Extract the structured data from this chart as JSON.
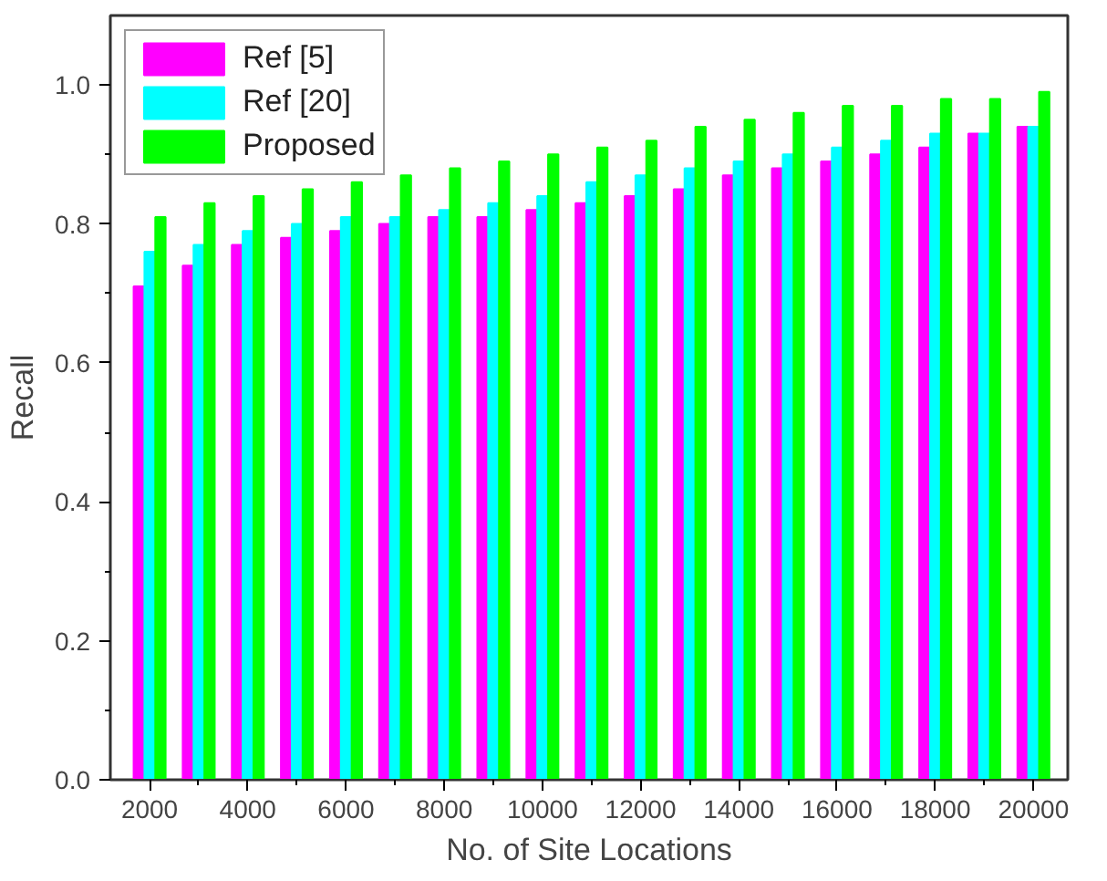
{
  "chart_data": {
    "type": "bar",
    "xlabel": "No. of Site Locations",
    "ylabel": "Recall",
    "x": [
      2000,
      3000,
      4000,
      5000,
      6000,
      7000,
      8000,
      9000,
      10000,
      11000,
      12000,
      13000,
      14000,
      15000,
      16000,
      17000,
      18000,
      19000,
      20000
    ],
    "series": [
      {
        "name": "Ref [5]",
        "color": "#ff00ff",
        "values": [
          0.71,
          0.74,
          0.77,
          0.78,
          0.79,
          0.8,
          0.81,
          0.81,
          0.82,
          0.83,
          0.84,
          0.85,
          0.87,
          0.88,
          0.89,
          0.9,
          0.91,
          0.93,
          0.94
        ]
      },
      {
        "name": "Ref [20]",
        "color": "#00ffff",
        "values": [
          0.76,
          0.77,
          0.79,
          0.8,
          0.81,
          0.81,
          0.82,
          0.83,
          0.84,
          0.86,
          0.87,
          0.88,
          0.89,
          0.9,
          0.91,
          0.92,
          0.93,
          0.93,
          0.94
        ]
      },
      {
        "name": "Proposed",
        "color": "#00ff00",
        "values": [
          0.81,
          0.83,
          0.84,
          0.85,
          0.86,
          0.87,
          0.88,
          0.89,
          0.9,
          0.91,
          0.92,
          0.94,
          0.95,
          0.96,
          0.97,
          0.97,
          0.98,
          0.98,
          0.99
        ]
      }
    ],
    "xlim": [
      1200,
      20700
    ],
    "xticks": [
      2000,
      4000,
      6000,
      8000,
      10000,
      12000,
      14000,
      16000,
      18000,
      20000
    ],
    "ylim": [
      0,
      1.1
    ],
    "yticks": [
      {
        "value": 0,
        "label": "0.0"
      },
      {
        "value": 0.2,
        "label": "0.2"
      },
      {
        "value": 0.4,
        "label": "0.4"
      },
      {
        "value": 0.6,
        "label": "0.6"
      },
      {
        "value": 0.8,
        "label": "0.8"
      },
      {
        "value": 1.0,
        "label": "1.0"
      }
    ],
    "grid": false,
    "legend": "top left"
  }
}
